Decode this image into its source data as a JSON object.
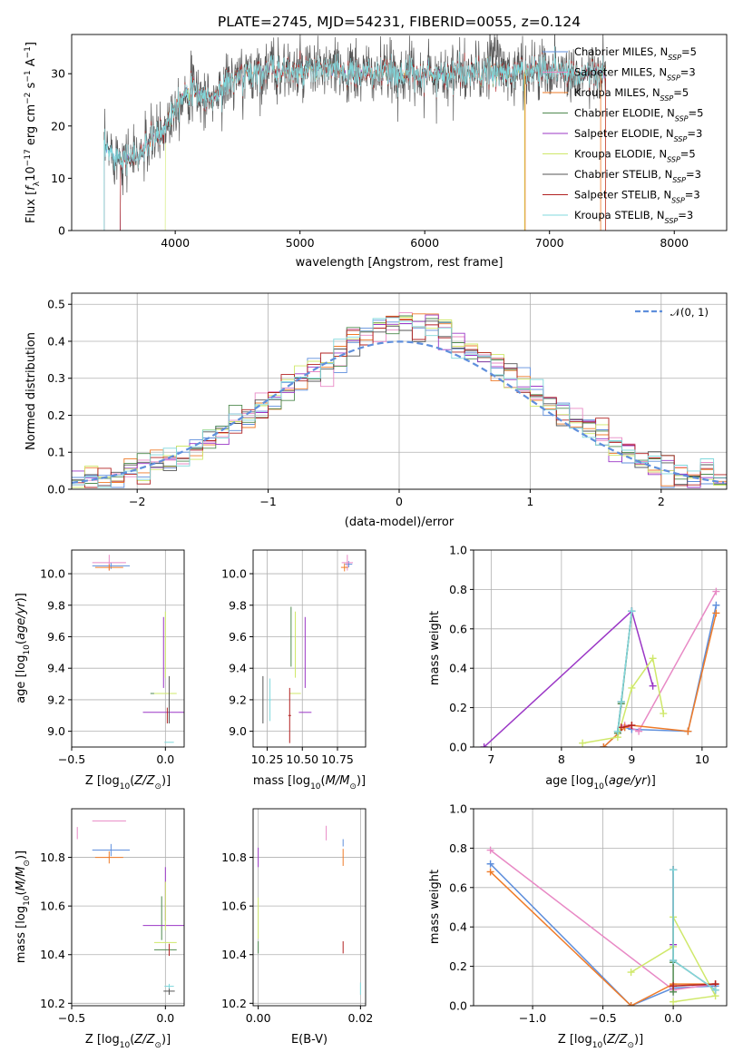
{
  "title": "PLATE=2745, MJD=54231, FIBERID=0055, z=0.124",
  "colors": {
    "c1": "#5f8fdc",
    "c2": "#e889c5",
    "c3": "#ef7b28",
    "c4": "#4f8a4f",
    "c5": "#9b37c6",
    "c6": "#cfe86a",
    "c7": "#555555",
    "c8": "#b22222",
    "c9": "#80d8dc",
    "gauss": "#5f8fdc",
    "grid": "#b0b0b0"
  },
  "legend": {
    "items": [
      {
        "label": "Chabrier MILES, N",
        "sub": "SSP",
        "tail": "=5"
      },
      {
        "label": "Salpeter MILES, N",
        "sub": "SSP",
        "tail": "=3"
      },
      {
        "label": "Kroupa MILES, N",
        "sub": "SSP",
        "tail": "=5"
      },
      {
        "label": "Chabrier ELODIE, N",
        "sub": "SSP",
        "tail": "=5"
      },
      {
        "label": "Salpeter ELODIE, N",
        "sub": "SSP",
        "tail": "=3"
      },
      {
        "label": "Kroupa ELODIE, N",
        "sub": "SSP",
        "tail": "=5"
      },
      {
        "label": "Chabrier STELIB, N",
        "sub": "SSP",
        "tail": "=3"
      },
      {
        "label": "Salpeter STELIB, N",
        "sub": "SSP",
        "tail": "=3"
      },
      {
        "label": "Kroupa STELIB, N",
        "sub": "SSP",
        "tail": "=3"
      }
    ],
    "gauss_label": "𝒩(0, 1)"
  },
  "chart_data": [
    {
      "id": "spectrum",
      "type": "line",
      "xlabel": "wavelength [Angstrom, rest frame]",
      "ylabel_parts": [
        "Flux [",
        "f",
        "λ",
        "10",
        "−17",
        " erg cm",
        "−2",
        " s",
        "−1",
        " A",
        "−1",
        "]"
      ],
      "xlim": [
        3170,
        8420
      ],
      "ylim": [
        0,
        37.5
      ],
      "xticks": [
        "4000",
        "5000",
        "6000",
        "7000",
        "8000"
      ],
      "xtick_values": [
        4000,
        5000,
        6000,
        7000,
        8000
      ],
      "yticks": [
        "0",
        "10",
        "20",
        "30"
      ],
      "ytick_values": [
        0,
        10,
        20,
        30
      ],
      "spectrum_range": [
        3430,
        7450
      ],
      "spectrum_anchors": [
        [
          3430,
          15.5
        ],
        [
          3600,
          14
        ],
        [
          3700,
          14
        ],
        [
          3800,
          17
        ],
        [
          3900,
          19
        ],
        [
          4000,
          24
        ],
        [
          4100,
          27
        ],
        [
          4300,
          25
        ],
        [
          4400,
          28
        ],
        [
          4600,
          30
        ],
        [
          4800,
          31
        ],
        [
          5000,
          30
        ],
        [
          5200,
          31
        ],
        [
          5400,
          30
        ],
        [
          5800,
          30
        ],
        [
          6200,
          30
        ],
        [
          6600,
          30
        ],
        [
          7000,
          31
        ],
        [
          7200,
          30
        ],
        [
          7450,
          30
        ]
      ],
      "model_starts": [
        3430,
        3560,
        3560,
        3560,
        3560,
        3920,
        3430,
        3560,
        3430
      ],
      "notes": "Flux falls to 0 at the left edge of each model range"
    },
    {
      "id": "residuals",
      "type": "histogram",
      "xlabel": "(data-model)/error",
      "ylabel": "Normed distribution",
      "xlim": [
        -2.5,
        2.5
      ],
      "ylim": [
        0,
        0.53
      ],
      "xticks": [
        "−2",
        "−1",
        "0",
        "1",
        "2"
      ],
      "xtick_values": [
        -2,
        -1,
        0,
        1,
        2
      ],
      "yticks": [
        "0.0",
        "0.1",
        "0.2",
        "0.3",
        "0.4",
        "0.5"
      ],
      "ytick_values": [
        0,
        0.1,
        0.2,
        0.3,
        0.4,
        0.5
      ],
      "bin_width": 0.1,
      "gaussian": {
        "mu": 0,
        "sigma": 1
      }
    },
    {
      "id": "age-Z",
      "type": "scatter",
      "xlabel_parts": [
        "Z [log",
        "10",
        "(",
        "Z/Z",
        "⊙",
        ")]"
      ],
      "ylabel_parts": [
        "age  [log",
        "10",
        "(",
        "age/yr",
        ")]"
      ],
      "xlim": [
        -0.5,
        0.1
      ],
      "ylim": [
        8.9,
        10.15
      ],
      "xticks": [
        "−0.5",
        "0.0"
      ],
      "xtick_values": [
        -0.5,
        0
      ],
      "yticks": [
        "9.0",
        "9.2",
        "9.4",
        "9.6",
        "9.8",
        "10.0"
      ],
      "ytick_values": [
        9.0,
        9.2,
        9.4,
        9.6,
        9.8,
        10.0
      ],
      "points": [
        {
          "c": "c1",
          "x": -0.29,
          "y": 10.05,
          "xe": 0.2,
          "ye": 0.04
        },
        {
          "c": "c2",
          "x": -0.3,
          "y": 10.07,
          "xe": 0.18,
          "ye": 0.1
        },
        {
          "c": "c3",
          "x": -0.3,
          "y": 10.04,
          "xe": 0.15,
          "ye": 0.04
        },
        {
          "c": "c4",
          "x": -0.02,
          "y": 9.24,
          "xe": 0.12,
          "ye": 0.0
        },
        {
          "c": "c5",
          "x": -0.01,
          "y": 9.12,
          "xe": 0.22,
          "ye": 0.0
        },
        {
          "c": "c5b",
          "x": -0.01,
          "y": 9.5,
          "xe": 0.0,
          "ye": 0.45
        },
        {
          "c": "c6",
          "x": 0.0,
          "y": 9.24,
          "xe": 0.12,
          "ye": 0.0
        },
        {
          "c": "c6b",
          "x": 0.0,
          "y": 9.55,
          "xe": 0.0,
          "ye": 0.42
        },
        {
          "c": "c7",
          "x": 0.02,
          "y": 9.2,
          "xe": 0.0,
          "ye": 0.3
        },
        {
          "c": "c8",
          "x": 0.01,
          "y": 9.1,
          "xe": 0.0,
          "ye": 0.1
        },
        {
          "c": "c9",
          "x": 0.02,
          "y": 8.93,
          "xe": 0.05,
          "ye": 0.0
        }
      ]
    },
    {
      "id": "age-mass",
      "type": "scatter",
      "xlabel_parts": [
        "mass [log",
        "10",
        "(",
        "M/M",
        "⊙",
        ")]"
      ],
      "xlim": [
        10.15,
        10.95
      ],
      "ylim": [
        8.9,
        10.15
      ],
      "xticks": [
        "10.25",
        "10.50",
        "10.75"
      ],
      "xtick_values": [
        10.25,
        10.5,
        10.75
      ],
      "yticks": [
        "9.0",
        "9.2",
        "9.4",
        "9.6",
        "9.8",
        "10.0"
      ],
      "ytick_values": [
        9.0,
        9.2,
        9.4,
        9.6,
        9.8,
        10.0
      ],
      "points": [
        {
          "c": "c1",
          "x": 10.83,
          "y": 10.06,
          "xe": 0.05,
          "ye": 0.04
        },
        {
          "c": "c2",
          "x": 10.82,
          "y": 10.07,
          "xe": 0.08,
          "ye": 0.1
        },
        {
          "c": "c3",
          "x": 10.8,
          "y": 10.04,
          "xe": 0.05,
          "ye": 0.05
        },
        {
          "c": "c4",
          "x": 10.42,
          "y": 9.6,
          "xe": 0.0,
          "ye": 0.38
        },
        {
          "c": "c5",
          "x": 10.52,
          "y": 9.12,
          "xe": 0.09,
          "ye": 0.0
        },
        {
          "c": "c5b",
          "x": 10.52,
          "y": 9.5,
          "xe": 0.0,
          "ye": 0.45
        },
        {
          "c": "c6",
          "x": 10.45,
          "y": 9.24,
          "xe": 0.08,
          "ye": 0.0
        },
        {
          "c": "c6b",
          "x": 10.45,
          "y": 9.55,
          "xe": 0.0,
          "ye": 0.42
        },
        {
          "c": "c7",
          "x": 10.22,
          "y": 9.2,
          "xe": 0.0,
          "ye": 0.3
        },
        {
          "c": "c8",
          "x": 10.41,
          "y": 9.1,
          "xe": 0.02,
          "ye": 0.35
        },
        {
          "c": "c9",
          "x": 10.27,
          "y": 9.2,
          "xe": 0.02,
          "ye": 0.27
        }
      ]
    },
    {
      "id": "mass-weight-age",
      "type": "line",
      "xlabel_parts": [
        "age  [log",
        "10",
        "(",
        "age/yr",
        ")]"
      ],
      "ylabel": "mass weight",
      "xlim": [
        6.75,
        10.35
      ],
      "ylim": [
        0,
        1
      ],
      "xticks": [
        "7",
        "8",
        "9",
        "10"
      ],
      "xtick_values": [
        7,
        8,
        9,
        10
      ],
      "yticks": [
        "0.0",
        "0.2",
        "0.4",
        "0.6",
        "0.8",
        "1.0"
      ],
      "ytick_values": [
        0,
        0.2,
        0.4,
        0.6,
        0.8,
        1.0
      ],
      "series": [
        {
          "c": "c1",
          "x": [
            8.6,
            8.9,
            9.0,
            9.8,
            10.2
          ],
          "y": [
            0.0,
            0.1,
            0.09,
            0.08,
            0.72
          ]
        },
        {
          "c": "c2",
          "x": [
            8.9,
            9.1,
            10.2
          ],
          "y": [
            0.11,
            0.08,
            0.79
          ]
        },
        {
          "c": "c3",
          "x": [
            8.6,
            8.9,
            9.0,
            9.8,
            10.2
          ],
          "y": [
            0.0,
            0.1,
            0.11,
            0.08,
            0.68
          ]
        },
        {
          "c": "c4",
          "x": [
            8.8,
            8.85,
            9.0
          ],
          "y": [
            0.07,
            0.22,
            0.69
          ]
        },
        {
          "c": "c5",
          "x": [
            6.9,
            9.0,
            9.3
          ],
          "y": [
            0.0,
            0.69,
            0.31
          ]
        },
        {
          "c": "c6",
          "x": [
            8.3,
            8.8,
            9.0,
            9.3,
            9.45
          ],
          "y": [
            0.02,
            0.05,
            0.3,
            0.45,
            0.17
          ]
        },
        {
          "c": "c7",
          "x": [
            8.8,
            8.85,
            9.0
          ],
          "y": [
            0.08,
            0.23,
            0.69
          ]
        },
        {
          "c": "c8",
          "x": [
            8.85,
            9.0
          ],
          "y": [
            0.1,
            0.11
          ]
        },
        {
          "c": "c9",
          "x": [
            8.8,
            8.85,
            9.0
          ],
          "y": [
            0.08,
            0.23,
            0.69
          ]
        }
      ]
    },
    {
      "id": "mass-Z",
      "type": "scatter",
      "xlabel_parts": [
        "Z [log",
        "10",
        "(",
        "Z/Z",
        "⊙",
        ")]"
      ],
      "ylabel_parts": [
        "mass [log",
        "10",
        "(",
        "M/M",
        "⊙",
        ")]"
      ],
      "xlim": [
        -0.5,
        0.1
      ],
      "ylim": [
        10.19,
        11.0
      ],
      "xticks": [
        "−0.5",
        "0.0"
      ],
      "xtick_values": [
        -0.5,
        0
      ],
      "yticks": [
        "10.2",
        "10.4",
        "10.6",
        "10.8"
      ],
      "ytick_values": [
        10.2,
        10.4,
        10.6,
        10.8
      ],
      "points": [
        {
          "c": "c1",
          "x": -0.29,
          "y": 10.83,
          "xe": 0.2,
          "ye": 0.05
        },
        {
          "c": "c2",
          "x": -0.3,
          "y": 10.95,
          "xe": 0.18,
          "ye": 0.0
        },
        {
          "c": "c2b",
          "x": -0.47,
          "y": 10.9,
          "xe": 0.0,
          "ye": 0.05
        },
        {
          "c": "c3",
          "x": -0.3,
          "y": 10.8,
          "xe": 0.15,
          "ye": 0.05
        },
        {
          "c": "c4",
          "x": -0.02,
          "y": 10.55,
          "xe": 0.0,
          "ye": 0.18
        },
        {
          "c": "c4b",
          "x": 0.0,
          "y": 10.42,
          "xe": 0.12,
          "ye": 0.0
        },
        {
          "c": "c5",
          "x": -0.01,
          "y": 10.52,
          "xe": 0.22,
          "ye": 0.0
        },
        {
          "c": "c5b",
          "x": 0.0,
          "y": 10.65,
          "xe": 0.0,
          "ye": 0.22
        },
        {
          "c": "c6",
          "x": 0.0,
          "y": 10.45,
          "xe": 0.12,
          "ye": 0.0
        },
        {
          "c": "c6b",
          "x": 0.0,
          "y": 10.6,
          "xe": 0.0,
          "ye": 0.2
        },
        {
          "c": "c7",
          "x": 0.02,
          "y": 10.25,
          "xe": 0.06,
          "ye": 0.03
        },
        {
          "c": "c8",
          "x": 0.02,
          "y": 10.42,
          "xe": 0.0,
          "ye": 0.05
        },
        {
          "c": "c9",
          "x": 0.02,
          "y": 10.27,
          "xe": 0.05,
          "ye": 0.02
        }
      ]
    },
    {
      "id": "mass-EBV",
      "type": "scatter",
      "xlabel": "E(B-V)",
      "xlim": [
        -0.001,
        0.021
      ],
      "ylim": [
        10.19,
        11.0
      ],
      "xticks": [
        "0.00",
        "0.02"
      ],
      "xtick_values": [
        0,
        0.02
      ],
      "yticks": [
        "10.2",
        "10.4",
        "10.6",
        "10.8"
      ],
      "ytick_values": [
        10.2,
        10.4,
        10.6,
        10.8
      ],
      "points": [
        {
          "c": "c5",
          "x": 0.0,
          "y": 10.8,
          "xe": 0.0,
          "ye": 0.08
        },
        {
          "c": "c6",
          "x": 0.0,
          "y": 10.55,
          "xe": 0.0,
          "ye": 0.17
        },
        {
          "c": "c2",
          "x": 0.0133,
          "y": 10.9,
          "xe": 0.0,
          "ye": 0.06
        },
        {
          "c": "c3",
          "x": 0.0166,
          "y": 10.8,
          "xe": 0.0,
          "ye": 0.07
        },
        {
          "c": "c1",
          "x": 0.0166,
          "y": 10.86,
          "xe": 0.0,
          "ye": 0.03
        },
        {
          "c": "c8",
          "x": 0.0166,
          "y": 10.43,
          "xe": 0.0,
          "ye": 0.05
        },
        {
          "c": "c9",
          "x": 0.02,
          "y": 10.26,
          "xe": 0.0,
          "ye": 0.05
        },
        {
          "c": "c4",
          "x": 0.0,
          "y": 10.43,
          "xe": 0.0,
          "ye": 0.05
        }
      ]
    },
    {
      "id": "mass-weight-Z",
      "type": "line",
      "xlabel_parts": [
        "Z [log",
        "10",
        "(",
        "Z/Z",
        "⊙",
        ")]"
      ],
      "ylabel": "mass weight",
      "xlim": [
        -1.42,
        0.38
      ],
      "ylim": [
        0,
        1
      ],
      "xticks": [
        "−1.0",
        "−0.5",
        "0.0"
      ],
      "xtick_values": [
        -1,
        -0.5,
        0
      ],
      "yticks": [
        "0.0",
        "0.2",
        "0.4",
        "0.6",
        "0.8",
        "1.0"
      ],
      "ytick_values": [
        0,
        0.2,
        0.4,
        0.6,
        0.8,
        1.0
      ],
      "series": [
        {
          "c": "c1",
          "x": [
            -1.3,
            -0.3,
            0.0,
            0.3
          ],
          "y": [
            0.72,
            0.0,
            0.09,
            0.1
          ]
        },
        {
          "c": "c2",
          "x": [
            -1.3,
            0.0,
            0.3
          ],
          "y": [
            0.79,
            0.08,
            0.11
          ]
        },
        {
          "c": "c3",
          "x": [
            -1.3,
            -0.3,
            0.0,
            0.3
          ],
          "y": [
            0.68,
            0.0,
            0.11,
            0.11
          ]
        },
        {
          "c": "c4",
          "x": [
            0.0,
            0.0,
            0.0
          ],
          "y": [
            0.07,
            0.22,
            0.69
          ]
        },
        {
          "c": "c5",
          "x": [
            0.0,
            0.0
          ],
          "y": [
            0.69,
            0.31
          ]
        },
        {
          "c": "c6",
          "x": [
            -0.3,
            0.0,
            0.0,
            0.3,
            0.0
          ],
          "y": [
            0.17,
            0.3,
            0.45,
            0.05,
            0.02
          ]
        },
        {
          "c": "c7",
          "x": [
            0.0,
            0.0,
            0.3
          ],
          "y": [
            0.69,
            0.23,
            0.08
          ]
        },
        {
          "c": "c8",
          "x": [
            0.0,
            0.3
          ],
          "y": [
            0.1,
            0.11
          ]
        },
        {
          "c": "c9",
          "x": [
            0.0,
            0.0,
            0.3
          ],
          "y": [
            0.69,
            0.23,
            0.08
          ]
        }
      ]
    }
  ]
}
